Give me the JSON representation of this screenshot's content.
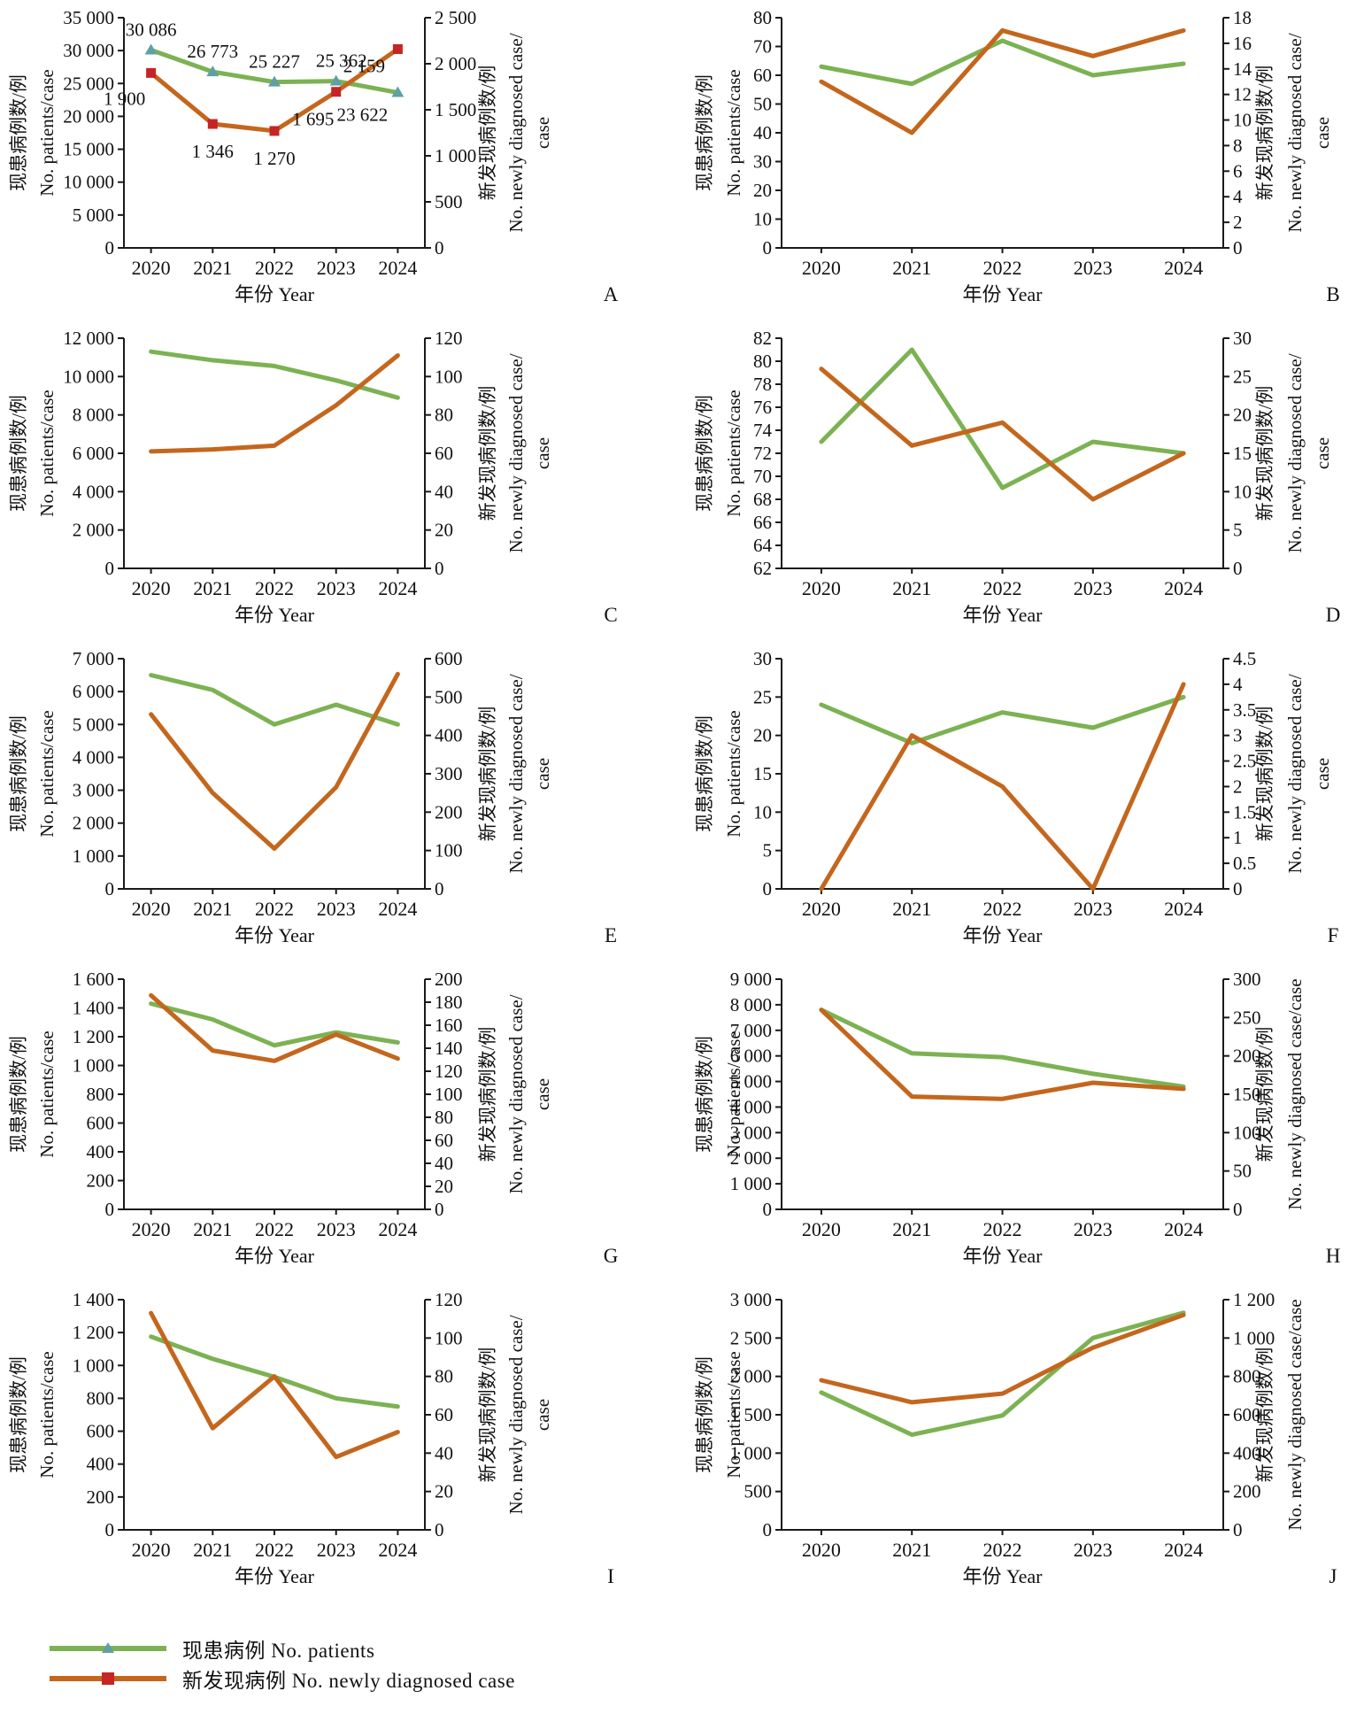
{
  "colors": {
    "patients_line": "#7cb252",
    "newly_line": "#c4661d",
    "patients_marker": "#5fa0a5",
    "newly_marker": "#c52525",
    "axis": "#1a1a1a"
  },
  "axis_labels": {
    "x": "年份  Year",
    "left_cn": "现患病例数/例",
    "left_en": "No.  patients/case",
    "right_cn": "新发现病例数/例"
  },
  "years": [
    "2020",
    "2021",
    "2022",
    "2023",
    "2024"
  ],
  "legend": {
    "items": [
      {
        "key": "patients",
        "label": "现患病例  No. patients"
      },
      {
        "key": "newly",
        "label": "新发现病例  No. newly diagnosed case"
      }
    ]
  },
  "chart_data": [
    {
      "panel": "A",
      "type": "line",
      "x": [
        2020,
        2021,
        2022,
        2023,
        2024
      ],
      "left_axis": {
        "min": 0,
        "max": 35000,
        "step": 5000
      },
      "right_axis": {
        "min": 0,
        "max": 2500,
        "step": 500
      },
      "right_label_en_lines": [
        "No.  newly  diagnosed  case/",
        "case"
      ],
      "series": [
        {
          "name": "现患病例 No. patients",
          "axis": "left",
          "values": [
            30086,
            26773,
            25227,
            25362,
            23622
          ]
        },
        {
          "name": "新发现病例 No. newly diagnosed case",
          "axis": "right",
          "values": [
            1900,
            1346,
            1270,
            1695,
            2159
          ]
        }
      ],
      "show_markers": true,
      "show_value_labels": true
    },
    {
      "panel": "B",
      "type": "line",
      "x": [
        2020,
        2021,
        2022,
        2023,
        2024
      ],
      "left_axis": {
        "min": 0,
        "max": 80,
        "step": 10
      },
      "right_axis": {
        "min": 0,
        "max": 18,
        "step": 2
      },
      "right_label_en_lines": [
        "No.  newly  diagnosed  case/",
        "case"
      ],
      "series": [
        {
          "name": "现患病例 No. patients",
          "axis": "left",
          "values": [
            63,
            57,
            72,
            60,
            64
          ]
        },
        {
          "name": "新发现病例 No. newly diagnosed case",
          "axis": "right",
          "values": [
            13,
            9,
            17,
            15,
            17
          ]
        }
      ],
      "show_markers": false,
      "show_value_labels": false
    },
    {
      "panel": "C",
      "type": "line",
      "x": [
        2020,
        2021,
        2022,
        2023,
        2024
      ],
      "left_axis": {
        "min": 0,
        "max": 12000,
        "step": 2000
      },
      "right_axis": {
        "min": 0,
        "max": 120,
        "step": 20
      },
      "right_label_en_lines": [
        "No.  newly  diagnosed  case/",
        "case"
      ],
      "series": [
        {
          "name": "现患病例 No. patients",
          "axis": "left",
          "values": [
            11300,
            10850,
            10550,
            9800,
            8900
          ]
        },
        {
          "name": "新发现病例 No. newly diagnosed case",
          "axis": "right",
          "values": [
            61,
            62,
            64,
            85,
            111
          ]
        }
      ],
      "show_markers": false,
      "show_value_labels": false
    },
    {
      "panel": "D",
      "type": "line",
      "x": [
        2020,
        2021,
        2022,
        2023,
        2024
      ],
      "left_axis": {
        "min": 62,
        "max": 82,
        "step": 2
      },
      "right_axis": {
        "min": 0,
        "max": 30,
        "step": 5
      },
      "right_label_en_lines": [
        "No.  newly  diagnosed  case/",
        "case"
      ],
      "series": [
        {
          "name": "现患病例 No. patients",
          "axis": "left",
          "values": [
            73,
            81,
            69,
            73,
            72
          ]
        },
        {
          "name": "新发现病例 No. newly diagnosed case",
          "axis": "right",
          "values": [
            26,
            16,
            19,
            9,
            15
          ]
        }
      ],
      "show_markers": false,
      "show_value_labels": false
    },
    {
      "panel": "E",
      "type": "line",
      "x": [
        2020,
        2021,
        2022,
        2023,
        2024
      ],
      "left_axis": {
        "min": 0,
        "max": 7000,
        "step": 1000
      },
      "right_axis": {
        "min": 0,
        "max": 600,
        "step": 100
      },
      "right_label_en_lines": [
        "No.  newly  diagnosed  case/",
        "case"
      ],
      "series": [
        {
          "name": "现患病例 No. patients",
          "axis": "left",
          "values": [
            6500,
            6050,
            5000,
            5600,
            5000
          ]
        },
        {
          "name": "新发现病例 No. newly diagnosed case",
          "axis": "right",
          "values": [
            455,
            250,
            105,
            265,
            560
          ]
        }
      ],
      "show_markers": false,
      "show_value_labels": false
    },
    {
      "panel": "F",
      "type": "line",
      "x": [
        2020,
        2021,
        2022,
        2023,
        2024
      ],
      "left_axis": {
        "min": 0,
        "max": 30,
        "step": 5
      },
      "right_axis": {
        "min": 0,
        "max": 4.5,
        "step": 0.5
      },
      "right_label_en_lines": [
        "No.  newly  diagnosed  case/",
        "case"
      ],
      "series": [
        {
          "name": "现患病例 No. patients",
          "axis": "left",
          "values": [
            24,
            19,
            23,
            21,
            25
          ]
        },
        {
          "name": "新发现病例 No. newly diagnosed case",
          "axis": "right",
          "values": [
            0,
            3,
            2,
            0,
            4
          ]
        }
      ],
      "show_markers": false,
      "show_value_labels": false
    },
    {
      "panel": "G",
      "type": "line",
      "x": [
        2020,
        2021,
        2022,
        2023,
        2024
      ],
      "left_axis": {
        "min": 0,
        "max": 1600,
        "step": 200
      },
      "right_axis": {
        "min": 0,
        "max": 200,
        "step": 20
      },
      "right_label_en_lines": [
        "No.  newly  diagnosed  case/",
        "case"
      ],
      "series": [
        {
          "name": "现患病例 No. patients",
          "axis": "left",
          "values": [
            1430,
            1320,
            1140,
            1230,
            1160
          ]
        },
        {
          "name": "新发现病例 No. newly diagnosed case",
          "axis": "right",
          "values": [
            186,
            138,
            129,
            152,
            131
          ]
        }
      ],
      "show_markers": false,
      "show_value_labels": false
    },
    {
      "panel": "H",
      "type": "line",
      "x": [
        2020,
        2021,
        2022,
        2023,
        2024
      ],
      "left_axis": {
        "min": 0,
        "max": 9000,
        "step": 1000
      },
      "right_axis": {
        "min": 0,
        "max": 300,
        "step": 50
      },
      "right_label_en_lines": [
        "No.  newly  diagnosed  case/case"
      ],
      "series": [
        {
          "name": "现患病例 No. patients",
          "axis": "left",
          "values": [
            7800,
            6100,
            5950,
            5300,
            4800
          ]
        },
        {
          "name": "新发现病例 No. newly diagnosed case",
          "axis": "right",
          "values": [
            260,
            147,
            144,
            165,
            157
          ]
        }
      ],
      "show_markers": false,
      "show_value_labels": false
    },
    {
      "panel": "I",
      "type": "line",
      "x": [
        2020,
        2021,
        2022,
        2023,
        2024
      ],
      "left_axis": {
        "min": 0,
        "max": 1400,
        "step": 200
      },
      "right_axis": {
        "min": 0,
        "max": 120,
        "step": 20
      },
      "right_label_en_lines": [
        "No.  newly  diagnosed  case/",
        "case"
      ],
      "series": [
        {
          "name": "现患病例 No. patients",
          "axis": "left",
          "values": [
            1175,
            1040,
            930,
            800,
            750
          ]
        },
        {
          "name": "新发现病例 No. newly diagnosed case",
          "axis": "right",
          "values": [
            113,
            53,
            80,
            38,
            51
          ]
        }
      ],
      "show_markers": false,
      "show_value_labels": false
    },
    {
      "panel": "J",
      "type": "line",
      "x": [
        2020,
        2021,
        2022,
        2023,
        2024
      ],
      "left_axis": {
        "min": 0,
        "max": 3000,
        "step": 500
      },
      "right_axis": {
        "min": 0,
        "max": 1200,
        "step": 200
      },
      "right_label_en_lines": [
        "No.  newly  diagnosed  case/case"
      ],
      "series": [
        {
          "name": "现患病例 No. patients",
          "axis": "left",
          "values": [
            1790,
            1240,
            1490,
            2500,
            2830
          ]
        },
        {
          "name": "新发现病例 No. newly diagnosed case",
          "axis": "right",
          "values": [
            780,
            665,
            710,
            950,
            1120
          ]
        }
      ],
      "show_markers": false,
      "show_value_labels": false
    }
  ]
}
